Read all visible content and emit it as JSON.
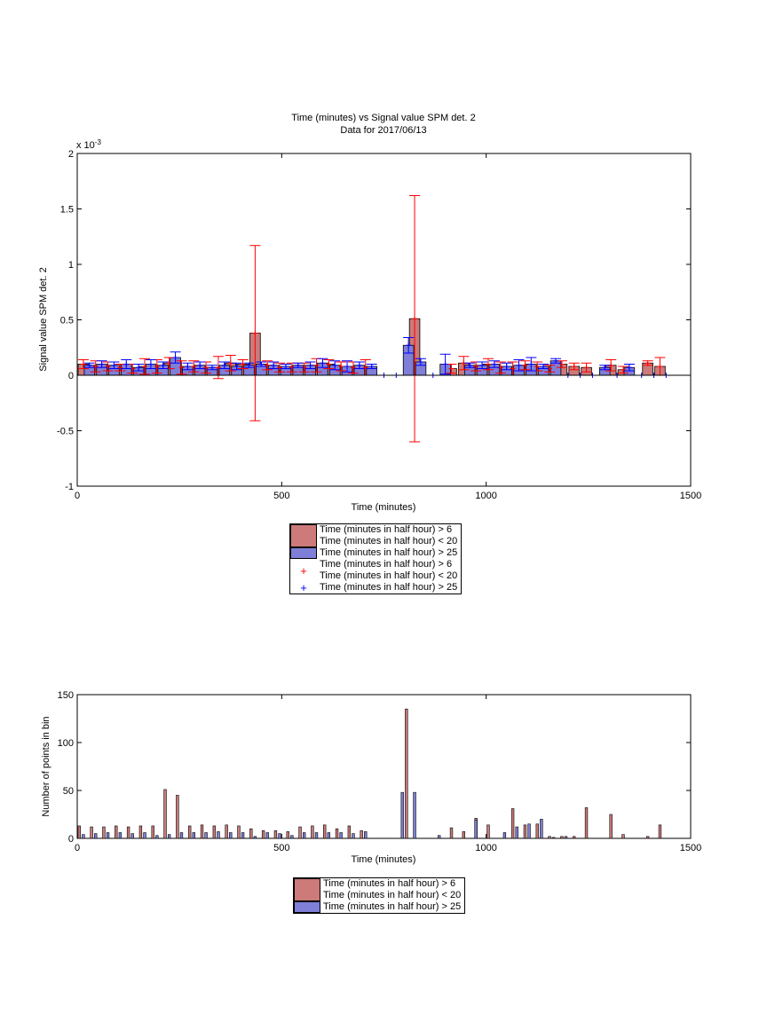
{
  "colors": {
    "red_face": "#cc7a7a",
    "blue_face": "#7f7fd7",
    "red_err": "#ff0000",
    "blue_err": "#0000ff"
  },
  "chart_data": [
    {
      "type": "bar",
      "title": "Time (minutes) vs Signal value SPM det. 2",
      "subtitle": "Data for 2017/06/13",
      "xlabel": "Time (minutes)",
      "ylabel": "Signal value SPM det. 2",
      "y_exponent_label": "x 10",
      "y_exponent": "-3",
      "xlim": [
        0,
        1500
      ],
      "ylim": [
        -1,
        2
      ],
      "xticks": [
        "0",
        "500",
        "1000",
        "1500"
      ],
      "yticks": [
        "-1",
        "-0.5",
        "0",
        "0.5",
        "1",
        "1.5",
        "2"
      ],
      "series": [
        {
          "name": "Time (minutes in half hour) > 6\nTime (minutes in half hour) < 20",
          "x": [
            15,
            45,
            75,
            105,
            135,
            165,
            195,
            225,
            255,
            285,
            315,
            345,
            375,
            405,
            435,
            465,
            495,
            525,
            555,
            585,
            615,
            645,
            675,
            705,
            825,
            915,
            945,
            975,
            1005,
            1035,
            1065,
            1095,
            1125,
            1155,
            1185,
            1215,
            1245,
            1305,
            1335,
            1395,
            1425
          ],
          "values": [
            0.1,
            0.08,
            0.08,
            0.07,
            0.06,
            0.08,
            0.08,
            0.11,
            0.07,
            0.08,
            0.07,
            0.07,
            0.11,
            0.1,
            0.38,
            0.09,
            0.07,
            0.07,
            0.07,
            0.09,
            0.1,
            0.08,
            0.07,
            0.07,
            0.51,
            0.06,
            0.11,
            0.08,
            0.1,
            0.07,
            0.06,
            0.09,
            0.08,
            0.06,
            0.1,
            0.08,
            0.07,
            0.09,
            0.05,
            0.11,
            0.08
          ],
          "errors": [
            0.04,
            0.05,
            0.04,
            0.03,
            0.04,
            0.07,
            0.06,
            0.05,
            0.06,
            0.05,
            0.05,
            0.1,
            0.07,
            0.04,
            0.79,
            0.04,
            0.04,
            0.04,
            0.04,
            0.06,
            0.04,
            0.04,
            0.05,
            0.07,
            1.11,
            0.04,
            0.06,
            0.04,
            0.05,
            0.05,
            0.06,
            0.04,
            0.04,
            0.03,
            0.03,
            0.03,
            0.04,
            0.05,
            0.03,
            0.02,
            0.08
          ]
        },
        {
          "name": "Time (minutes in half hour) > 25",
          "x": [
            30,
            60,
            90,
            120,
            150,
            180,
            210,
            240,
            270,
            300,
            330,
            360,
            390,
            420,
            450,
            480,
            510,
            540,
            570,
            600,
            630,
            660,
            690,
            720,
            750,
            780,
            810,
            840,
            870,
            900,
            960,
            990,
            1020,
            1050,
            1080,
            1110,
            1140,
            1170,
            1200,
            1230,
            1260,
            1290,
            1320,
            1350,
            1380,
            1410,
            1440
          ],
          "values": [
            0.09,
            0.1,
            0.09,
            0.1,
            0.07,
            0.1,
            0.09,
            0.16,
            0.08,
            0.09,
            0.07,
            0.09,
            0.08,
            0.09,
            0.1,
            0.09,
            0.08,
            0.09,
            0.09,
            0.11,
            0.09,
            0.08,
            0.09,
            0.08,
            0,
            0,
            0.27,
            0.12,
            0,
            0.1,
            0.09,
            0.09,
            0.1,
            0.08,
            0.09,
            0.1,
            0.08,
            0.13,
            0,
            0,
            0,
            0.07,
            0,
            0.07,
            0,
            0,
            0
          ],
          "errors": [
            0.02,
            0.03,
            0.03,
            0.04,
            0.03,
            0.04,
            0.03,
            0.05,
            0.03,
            0.03,
            0.02,
            0.03,
            0.03,
            0.02,
            0.02,
            0.03,
            0.02,
            0.02,
            0.03,
            0.04,
            0.04,
            0.05,
            0.03,
            0.02,
            0,
            0,
            0.07,
            0.03,
            0,
            0.09,
            0.02,
            0.03,
            0.03,
            0.03,
            0.05,
            0.06,
            0.02,
            0.02,
            0,
            0,
            0,
            0.02,
            0,
            0.03,
            0,
            0,
            0
          ]
        }
      ],
      "legend_placement": "below",
      "legend": [
        {
          "type": "patch",
          "color": "#cc7a7a",
          "label": "Time (minutes in half hour) > 6\nTime (minutes in half hour) < 20"
        },
        {
          "type": "patch",
          "color": "#7f7fd7",
          "label": "Time (minutes in half hour) > 25"
        },
        {
          "type": "marker",
          "color": "#ff0000",
          "label": "Time (minutes in half hour) > 6\nTime (minutes in half hour) < 20"
        },
        {
          "type": "marker",
          "color": "#0000ff",
          "label": "Time (minutes in half hour) > 25"
        }
      ]
    },
    {
      "type": "bar",
      "title": "",
      "xlabel": "Time (minutes)",
      "ylabel": "Number of points in bin",
      "xlim": [
        0,
        1500
      ],
      "ylim": [
        0,
        150
      ],
      "xticks": [
        "0",
        "500",
        "1000",
        "1500"
      ],
      "yticks": [
        "0",
        "50",
        "100",
        "150"
      ],
      "series": [
        {
          "name": "Time (minutes in half hour) > 6\nTime (minutes in half hour) < 20",
          "x": [
            5,
            35,
            65,
            95,
            125,
            155,
            185,
            215,
            245,
            275,
            305,
            335,
            365,
            395,
            425,
            455,
            485,
            515,
            545,
            575,
            605,
            635,
            665,
            695,
            775,
            805,
            915,
            945,
            975,
            1005,
            1065,
            1095,
            1125,
            1155,
            1185,
            1215,
            1245,
            1305,
            1335,
            1395,
            1425
          ],
          "values": [
            13,
            12,
            12,
            13,
            12,
            13,
            13,
            51,
            45,
            13,
            14,
            13,
            14,
            13,
            10,
            8,
            8,
            7,
            12,
            13,
            14,
            10,
            13,
            8,
            0,
            135,
            11,
            7,
            21,
            14,
            31,
            14,
            15,
            2,
            2,
            2,
            32,
            25,
            4,
            2,
            14
          ]
        },
        {
          "name": "Time (minutes in half hour) > 25",
          "x": [
            15,
            45,
            75,
            105,
            135,
            165,
            195,
            225,
            255,
            285,
            315,
            345,
            375,
            405,
            435,
            465,
            495,
            525,
            555,
            585,
            615,
            645,
            675,
            705,
            795,
            825,
            885,
            975,
            1045,
            1075,
            1105,
            1135,
            1165,
            1195
          ],
          "values": [
            4,
            5,
            6,
            6,
            5,
            6,
            3,
            4,
            6,
            6,
            6,
            7,
            6,
            6,
            2,
            6,
            5,
            3,
            6,
            6,
            6,
            6,
            5,
            7,
            48,
            48,
            3,
            19,
            6,
            12,
            15,
            20,
            1,
            2
          ]
        }
      ],
      "legend_placement": "below",
      "legend": [
        {
          "type": "patch",
          "color": "#cc7a7a",
          "label": "Time (minutes in half hour) > 6\nTime (minutes in half hour) < 20"
        },
        {
          "type": "patch",
          "color": "#7f7fd7",
          "label": "Time (minutes in half hour) > 25"
        }
      ]
    }
  ]
}
